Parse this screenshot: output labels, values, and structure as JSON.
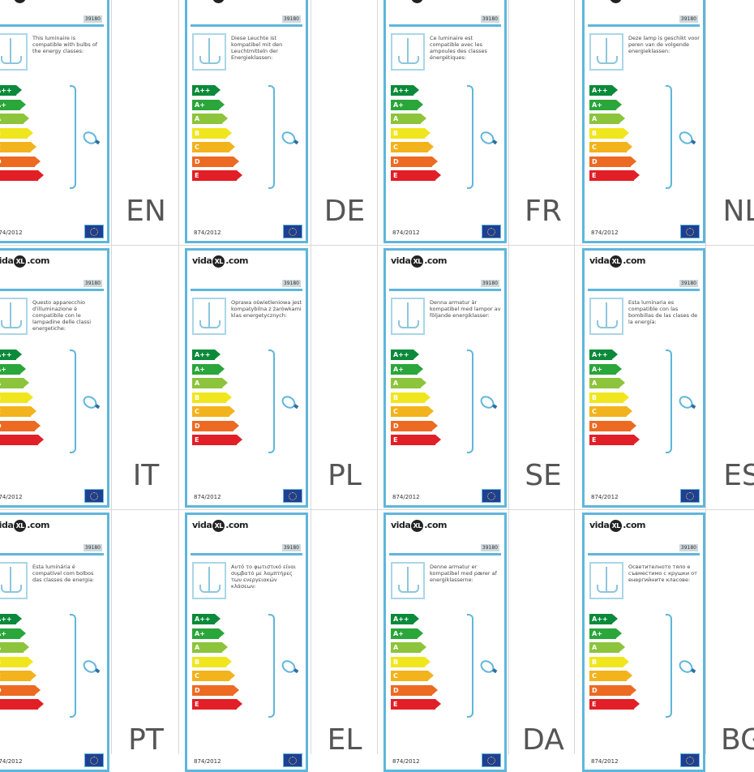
{
  "logo": {
    "brand_left": "vida",
    "brand_mid": "XL",
    "brand_right": ".com"
  },
  "product_code": "39180",
  "regulation": "874/2012",
  "energy_classes": [
    {
      "label": "A++",
      "color": "#0a8a3a"
    },
    {
      "label": "A+",
      "color": "#2aa63a"
    },
    {
      "label": "A",
      "color": "#8cc43c"
    },
    {
      "label": "B",
      "color": "#f0e61e"
    },
    {
      "label": "C",
      "color": "#f2b31c"
    },
    {
      "label": "D",
      "color": "#ec6a22"
    },
    {
      "label": "E",
      "color": "#e21f26"
    }
  ],
  "colors": {
    "border": "#5fb6dc",
    "eu_flag": "#1f3f93"
  },
  "labels": [
    {
      "lang": "EN",
      "text": "This luminaire is compatible with bulbs of the energy classes:"
    },
    {
      "lang": "DE",
      "text": "Diese Leuchte ist kompatibel mit den Leuchtmitteln der Energieklassen:"
    },
    {
      "lang": "FR",
      "text": "Ce luminaire est compatible avec les ampoules des classes énergétiques:"
    },
    {
      "lang": "NL",
      "text": "Deze lamp is geschikt voor peren van de volgende energieklassen:"
    },
    {
      "lang": "IT",
      "text": "Questo apparecchio d'illuminazione è compatibile con le lampadine delle classi energetiche:"
    },
    {
      "lang": "PL",
      "text": "Oprawa oświetleniowa jest kompatybilna z żarówkami klas energetycznych:"
    },
    {
      "lang": "SE",
      "text": "Denna armatur är kompatibel med lampor av följande energiklasser:"
    },
    {
      "lang": "ES",
      "text": "Esta luminaria es compatible con las bombillas de las clases de la energía:"
    },
    {
      "lang": "PT",
      "text": "Esta luminária é compatível com bolbos das classes de energia:"
    },
    {
      "lang": "EL",
      "text": "Αυτό το φωτιστικό είναι συμβατό με λαμπτήρες των ενεργειακών κλάσεων:"
    },
    {
      "lang": "DA",
      "text": "Denne armatur er kompatibel med pærer af energiklasserne:"
    },
    {
      "lang": "BG",
      "text": "Осветителното тяло е съвместимо с крушки от енергийните класове:"
    }
  ]
}
